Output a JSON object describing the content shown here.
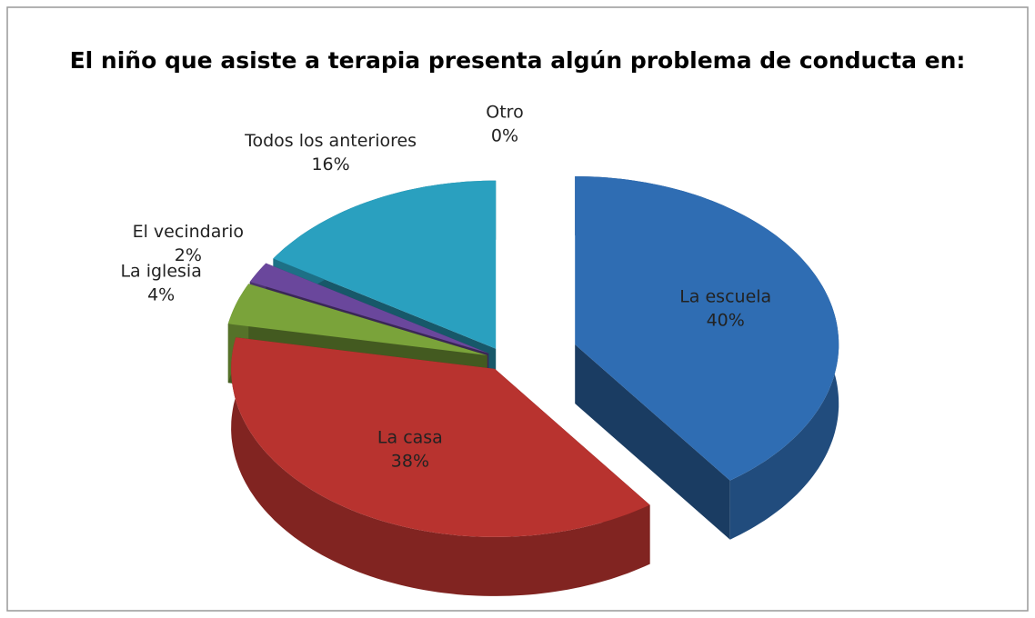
{
  "chart_data": {
    "type": "pie",
    "title": "El niño que asiste a terapia presenta algún problema de conducta en:",
    "categories": [
      "La escuela",
      "La casa",
      "La iglesia",
      "El vecindario",
      "Todos los anteriores",
      "Otro"
    ],
    "values": [
      40,
      38,
      4,
      2,
      16,
      0
    ],
    "value_labels": [
      "40%",
      "38%",
      "4%",
      "2%",
      "16%",
      "0%"
    ],
    "colors": [
      "#2f6db3",
      "#b8332f",
      "#7aa33a",
      "#6a479c",
      "#2aa0bf",
      "#e0812f"
    ]
  }
}
